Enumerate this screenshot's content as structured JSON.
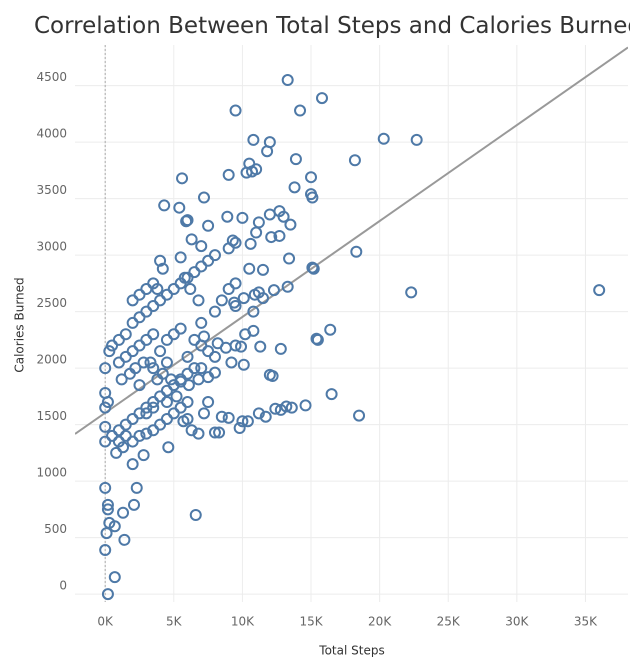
{
  "chart_data": {
    "type": "scatter",
    "title": "Correlation Between Total Steps and Calories Burned",
    "x_label": "Total Steps",
    "y_label": "Calories Burned",
    "color": "#4e79a7",
    "trend_color": "#999999",
    "grid": true,
    "zero_line": true,
    "xlim": [
      -2200,
      38100
    ],
    "ylim": [
      -70,
      4860
    ],
    "xticks": [
      {
        "value": 0,
        "label": "0K"
      },
      {
        "value": 5000,
        "label": "5K"
      },
      {
        "value": 10000,
        "label": "10K"
      },
      {
        "value": 15000,
        "label": "15K"
      },
      {
        "value": 20000,
        "label": "20K"
      },
      {
        "value": 25000,
        "label": "25K"
      },
      {
        "value": 30000,
        "label": "30K"
      },
      {
        "value": 35000,
        "label": "35K"
      }
    ],
    "yticks": [
      0,
      500,
      1000,
      1500,
      2000,
      2500,
      3000,
      3500,
      4000,
      4500
    ],
    "trend_line": {
      "slope": 0.0849,
      "intercept": 1604
    },
    "x": [
      13300,
      15800,
      14200,
      9500,
      20300,
      22700,
      10800,
      12000,
      11800,
      13900,
      18200,
      10500,
      11000,
      10300,
      10700,
      9000,
      15000,
      5600,
      13800,
      15000,
      15100,
      7200,
      4300,
      5400,
      12000,
      12700,
      13000,
      8900,
      10000,
      6000,
      11200,
      7500,
      13500,
      11000,
      10600,
      12100,
      9300,
      9500,
      6300,
      12700,
      5900,
      7000,
      9000,
      13400,
      18300,
      15100,
      15200,
      11500,
      36000,
      22300,
      13300,
      12300,
      11200,
      10900,
      10100,
      9400,
      16400,
      15500,
      15400,
      12800,
      11300,
      10800,
      10200,
      9900,
      9500,
      8800,
      10100,
      9200,
      16500,
      18500,
      14600,
      13600,
      13200,
      12800,
      12400,
      11700,
      11200,
      10400,
      10000,
      9800,
      9000,
      8500,
      8300,
      8000,
      7500,
      7200,
      6800,
      6300,
      6600,
      5700,
      4600,
      12200,
      12000,
      7500,
      8000,
      7000,
      6500,
      6000,
      5500,
      5000,
      4500,
      4000,
      3500,
      3000,
      2500,
      2000,
      1500,
      1000,
      500,
      0,
      0,
      0,
      0,
      0,
      200,
      300,
      500,
      1000,
      1500,
      2000,
      2500,
      3000,
      3500,
      4000,
      4500,
      5000,
      5500,
      6000,
      6500,
      7000,
      7500,
      8000,
      2000,
      2500,
      3000,
      3500,
      4000,
      4200,
      3800,
      5500,
      1000,
      1500,
      2000,
      2500,
      3000,
      3500,
      4000,
      4500,
      5000,
      5500,
      6500,
      7000,
      7500,
      8000,
      1200,
      1800,
      2200,
      2800,
      3300,
      3800,
      4200,
      4800,
      5500,
      6100,
      6800,
      1000,
      1500,
      2000,
      2500,
      3000,
      3500,
      4000,
      4500,
      5000,
      5500,
      6000,
      800,
      1300,
      2000,
      2800,
      0,
      200,
      200,
      300,
      700,
      1300,
      1400,
      2300,
      2100,
      100,
      0,
      200,
      700,
      3000,
      3500,
      4500,
      5200,
      6000,
      2500,
      3500,
      4500,
      6000,
      7000,
      8000,
      8500,
      9000,
      9500,
      6800,
      6200,
      5800,
      10500,
      11500,
      7200,
      8200,
      9500,
      10800
    ],
    "y": [
      4550,
      4390,
      4280,
      4280,
      4030,
      4020,
      4020,
      4000,
      3920,
      3850,
      3840,
      3810,
      3760,
      3730,
      3740,
      3710,
      3690,
      3680,
      3600,
      3540,
      3510,
      3510,
      3440,
      3420,
      3360,
      3390,
      3340,
      3340,
      3330,
      3310,
      3290,
      3260,
      3270,
      3200,
      3100,
      3160,
      3130,
      3110,
      3140,
      3170,
      3300,
      3080,
      3060,
      2970,
      3030,
      2890,
      2880,
      2870,
      2690,
      2670,
      2720,
      2690,
      2670,
      2650,
      2620,
      2580,
      2340,
      2250,
      2260,
      2170,
      2190,
      2330,
      2300,
      2190,
      2200,
      2180,
      2030,
      2050,
      1770,
      1580,
      1670,
      1650,
      1660,
      1630,
      1640,
      1570,
      1600,
      1530,
      1530,
      1470,
      1560,
      1570,
      1430,
      1430,
      1700,
      1600,
      1420,
      1450,
      700,
      1530,
      1300,
      1930,
      1940,
      1920,
      1960,
      2000,
      2000,
      1950,
      1900,
      1850,
      1800,
      1750,
      1700,
      1650,
      1600,
      1550,
      1500,
      1450,
      1400,
      1350,
      1480,
      1650,
      1780,
      2000,
      1700,
      2150,
      2200,
      2250,
      2300,
      2400,
      2450,
      2500,
      2550,
      2600,
      2650,
      2700,
      2750,
      2800,
      2850,
      2900,
      2950,
      3000,
      2600,
      2650,
      2700,
      2750,
      2950,
      2880,
      2700,
      2980,
      2050,
      2100,
      2150,
      2200,
      2250,
      2300,
      2150,
      2250,
      2300,
      2350,
      2250,
      2200,
      2150,
      2100,
      1900,
      1950,
      2000,
      2050,
      2050,
      1900,
      1950,
      1900,
      1880,
      1850,
      1900,
      1350,
      1400,
      1350,
      1400,
      1420,
      1450,
      1500,
      1550,
      1600,
      1650,
      1700,
      1250,
      1300,
      1150,
      1230,
      940,
      790,
      750,
      630,
      600,
      720,
      480,
      940,
      790,
      540,
      390,
      0,
      150,
      1600,
      1650,
      1700,
      1750,
      1550,
      1850,
      2000,
      2050,
      2100,
      2400,
      2500,
      2600,
      2700,
      2750,
      2600,
      2700,
      2800,
      2880,
      2620,
      2280,
      2220,
      2550,
      2500
    ]
  }
}
